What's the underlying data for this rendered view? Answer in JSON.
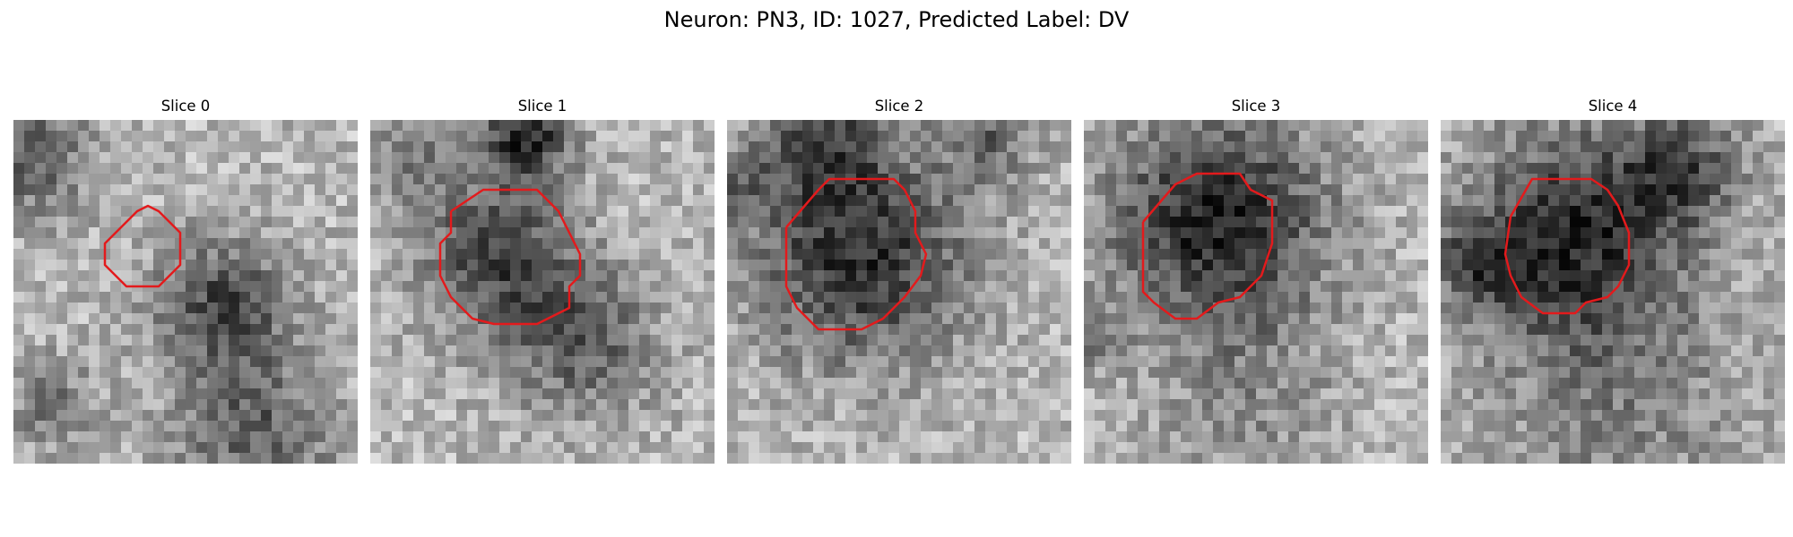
{
  "figure": {
    "title": "Neuron: PN3, ID: 1027, Predicted Label: DV"
  },
  "contour_color": "#e31a1c",
  "colormap": "gray_r",
  "slices": [
    {
      "title": "Slice 0"
    },
    {
      "title": "Slice 1"
    },
    {
      "title": "Slice 2"
    },
    {
      "title": "Slice 3"
    },
    {
      "title": "Slice 4"
    }
  ]
}
